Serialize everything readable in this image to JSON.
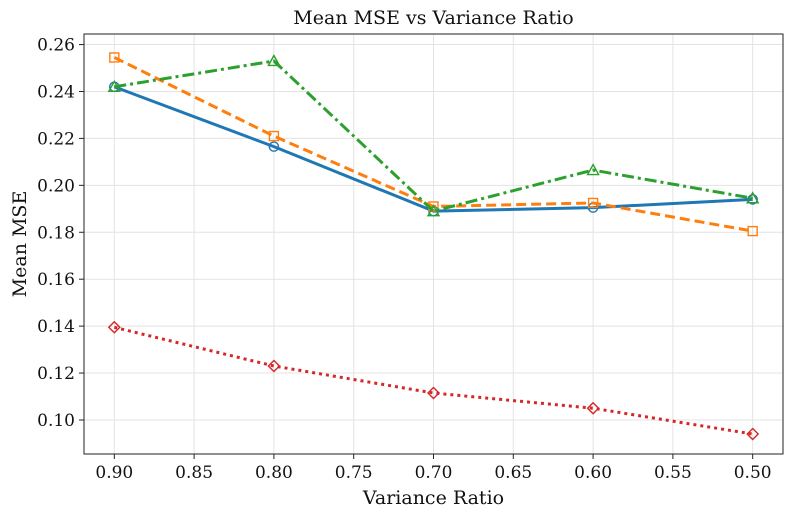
{
  "chart_data": {
    "type": "line",
    "title": "Mean MSE vs Variance Ratio",
    "xlabel": "Variance Ratio",
    "ylabel": "Mean MSE",
    "x": [
      0.9,
      0.8,
      0.7,
      0.6,
      0.5
    ],
    "xlim": [
      0.919,
      0.481
    ],
    "ylim": [
      0.0855,
      0.2645
    ],
    "x_reversed": true,
    "xticks": [
      "0.90",
      "0.85",
      "0.80",
      "0.75",
      "0.70",
      "0.65",
      "0.60",
      "0.55",
      "0.50"
    ],
    "xtick_values": [
      0.9,
      0.85,
      0.8,
      0.75,
      0.7,
      0.65,
      0.6,
      0.55,
      0.5
    ],
    "yticks": [
      "0.10",
      "0.12",
      "0.14",
      "0.16",
      "0.18",
      "0.20",
      "0.22",
      "0.24",
      "0.26"
    ],
    "ytick_values": [
      0.1,
      0.12,
      0.14,
      0.16,
      0.18,
      0.2,
      0.22,
      0.24,
      0.26
    ],
    "grid": true,
    "legend": "none",
    "series": [
      {
        "values": [
          0.242,
          0.2165,
          0.189,
          0.1905,
          0.194
        ],
        "color": "#1f77b4",
        "dash": "solid",
        "marker": "circle"
      },
      {
        "values": [
          0.2545,
          0.221,
          0.191,
          0.1925,
          0.1805
        ],
        "color": "#ff7f0e",
        "dash": "dashed",
        "marker": "square"
      },
      {
        "values": [
          0.242,
          0.253,
          0.189,
          0.2065,
          0.1945
        ],
        "color": "#2ca02c",
        "dash": "dashdot",
        "marker": "triangle"
      },
      {
        "values": [
          0.1395,
          0.123,
          0.1115,
          0.105,
          0.094
        ],
        "color": "#d62728",
        "dash": "dotted",
        "marker": "diamond"
      }
    ]
  }
}
